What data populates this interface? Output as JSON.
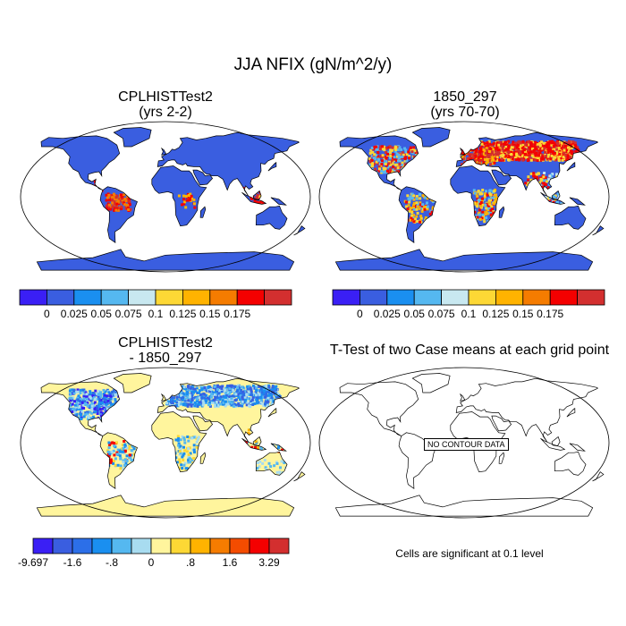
{
  "figure": {
    "title": "JJA NFIX (gN/m^2/y)"
  },
  "panels": [
    {
      "id": "case1",
      "title": "CPLHISTTest2",
      "subtitle": "(yrs 2-2)"
    },
    {
      "id": "case2",
      "title": "1850_297",
      "subtitle": "(yrs 70-70)"
    },
    {
      "id": "diff",
      "title": "CPLHISTTest2",
      "subtitle": "- 1850_297"
    },
    {
      "id": "ttest",
      "title": "T-Test of two Case means at each grid point",
      "overlay_text": "NO CONTOUR DATA",
      "note": "Cells are significant at 0.1 level"
    }
  ],
  "colorbars": {
    "case": {
      "colors": [
        "#3a1ff5",
        "#3a5ee0",
        "#1a8ff0",
        "#55b8f0",
        "#c8e8f0",
        "#fdd835",
        "#ffb300",
        "#f57c00",
        "#f40000",
        "#d32f2f"
      ],
      "labels": [
        "0",
        "0.025",
        "0.05",
        "0.075",
        "0.1",
        "0.125",
        "0.15",
        "0.175"
      ]
    },
    "diff": {
      "colors": [
        "#3a1ff5",
        "#3a5ee0",
        "#2c6fe8",
        "#1a8ff0",
        "#55b8f0",
        "#a8dcf0",
        "#fff59d",
        "#fdd835",
        "#ffb300",
        "#f57c00",
        "#f44c00",
        "#f40000",
        "#d32f2f"
      ],
      "labels": [
        "-9.697",
        "-1.6",
        "-.8",
        "0",
        ".8",
        "1.6",
        "3.29"
      ]
    }
  },
  "chart_data": [
    {
      "type": "heatmap",
      "title": "CPLHISTTest2 (yrs 2-2)",
      "variable": "JJA NFIX (gN/m^2/y)",
      "levels": [
        0,
        0.025,
        0.05,
        0.075,
        0.1,
        0.125,
        0.15,
        0.175
      ],
      "description_values": {
        "global_background_bin": "0-0.025",
        "tropical_hotspots": ">0.175"
      }
    },
    {
      "type": "heatmap",
      "title": "1850_297 (yrs 70-70)",
      "variable": "JJA NFIX (gN/m^2/y)",
      "levels": [
        0,
        0.025,
        0.05,
        0.075,
        0.1,
        0.125,
        0.15,
        0.175
      ],
      "description_values": {
        "northern_high_latitudes_bin": ">0.175",
        "southern_bin": "0-0.025"
      }
    },
    {
      "type": "heatmap",
      "title": "CPLHISTTest2 - 1850_297",
      "levels": [
        -9.697,
        -1.6,
        -0.8,
        0,
        0.8,
        1.6,
        3.29
      ]
    }
  ]
}
